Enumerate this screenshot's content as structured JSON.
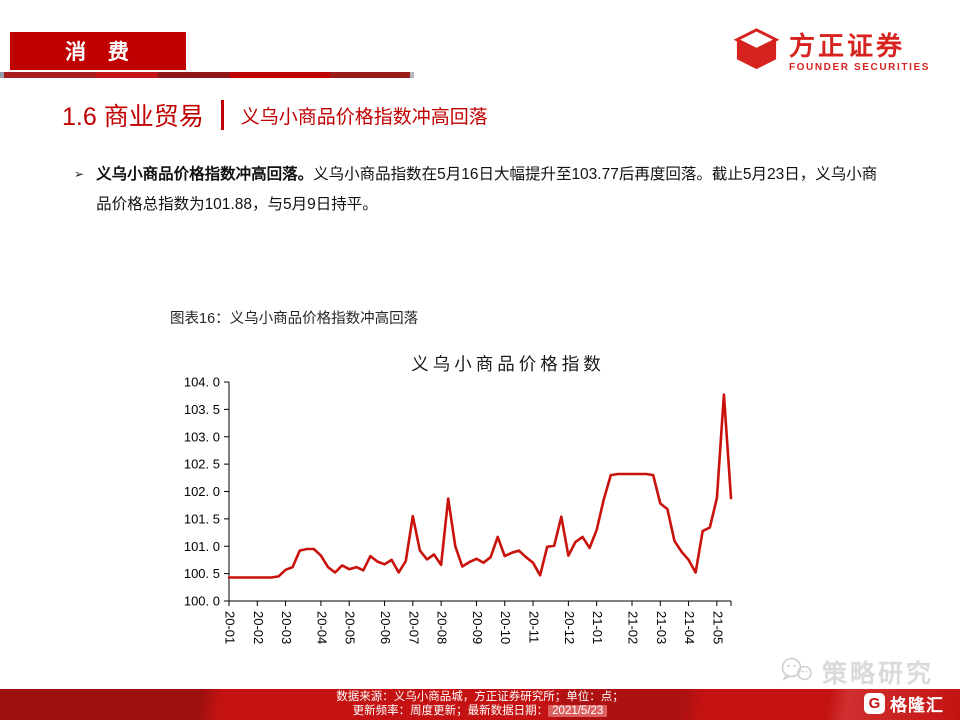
{
  "header": {
    "badge": "消 费",
    "brand_cn": "方正证券",
    "brand_en": "FOUNDER SECURITIES"
  },
  "title": {
    "left": "1.6 商业贸易",
    "right": "义乌小商品价格指数冲高回落"
  },
  "bullet": {
    "marker": "➢",
    "lead": "义乌小商品价格指数冲高回落。",
    "rest": "义乌小商品指数在5月16日大幅提升至103.77后再度回落。截止5月23日，义乌小商品价格总指数为101.88，与5月9日持平。"
  },
  "figure": {
    "caption": "图表16：义乌小商品价格指数冲高回落"
  },
  "chart_data": {
    "type": "line",
    "title": "义乌小商品价格指数",
    "xlabel": "",
    "ylabel": "",
    "frequency": "weekly",
    "legend": "none",
    "grid": false,
    "line_color": "#c9120c",
    "ylim": [
      100.0,
      104.0
    ],
    "ytick_step": 0.5,
    "ytick_labels": [
      "100. 0",
      "100. 5",
      "101. 0",
      "101. 5",
      "102. 0",
      "102. 5",
      "103. 0",
      "103. 5",
      "104. 0"
    ],
    "xtick_labels": [
      "20-01",
      "20-02",
      "20-03",
      "20-04",
      "20-05",
      "20-06",
      "20-07",
      "20-08",
      "20-09",
      "20-10",
      "20-11",
      "20-12",
      "21-01",
      "21-02",
      "21-03",
      "21-04",
      "21-05"
    ],
    "xtick_indices": [
      0,
      4,
      8,
      13,
      17,
      22,
      26,
      30,
      35,
      39,
      43,
      48,
      52,
      57,
      61,
      65,
      69
    ],
    "values": [
      100.43,
      100.43,
      100.43,
      100.43,
      100.43,
      100.43,
      100.43,
      100.45,
      100.57,
      100.62,
      100.92,
      100.95,
      100.95,
      100.83,
      100.62,
      100.52,
      100.65,
      100.58,
      100.62,
      100.56,
      100.82,
      100.72,
      100.67,
      100.75,
      100.52,
      100.73,
      101.55,
      100.92,
      100.76,
      100.85,
      100.66,
      101.87,
      101.0,
      100.63,
      100.71,
      100.77,
      100.7,
      100.8,
      101.17,
      100.82,
      100.88,
      100.92,
      100.8,
      100.7,
      100.47,
      100.99,
      101.01,
      101.54,
      100.83,
      101.08,
      101.17,
      100.97,
      101.3,
      101.85,
      102.3,
      102.32,
      102.32,
      102.32,
      102.32,
      102.32,
      102.3,
      101.78,
      101.68,
      101.1,
      100.9,
      100.75,
      100.52,
      101.28,
      101.34,
      101.88,
      103.77,
      101.88
    ],
    "key_points": {
      "peak_2021_05_16": 103.77,
      "latest_2021_05_23": 101.88
    }
  },
  "watermark": {
    "text": "策略研究"
  },
  "footer": {
    "source_line": "数据来源：义乌小商品城，方正证券研究所；单位：点；",
    "update_prefix": "更新频率：周度更新；最新数据日期：",
    "date": "2021/5/23",
    "gelonghui_g": "G",
    "gelonghui": "格隆汇"
  }
}
